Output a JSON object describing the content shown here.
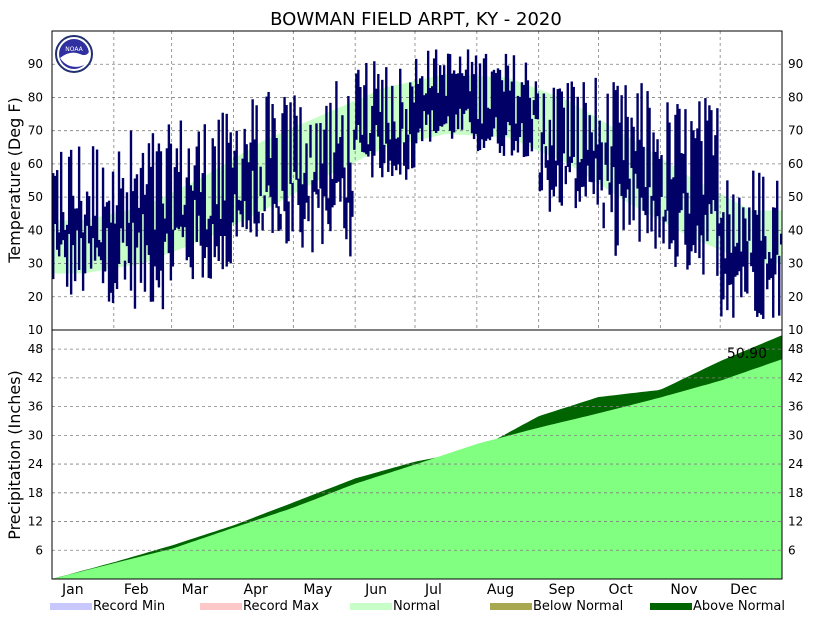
{
  "chart_data": {
    "type": "bar",
    "title": "BOWMAN FIELD ARPT, KY - 2020",
    "months": [
      "Jan",
      "Feb",
      "Mar",
      "Apr",
      "May",
      "Jun",
      "Jul",
      "Aug",
      "Sep",
      "Oct",
      "Nov",
      "Dec"
    ],
    "temperature": {
      "ylabel": "Temperature (Deg F)",
      "ylim": [
        10,
        100
      ],
      "yticks": [
        10,
        20,
        30,
        40,
        50,
        60,
        70,
        80,
        90
      ],
      "normal_high_monthly": [
        43,
        47,
        56,
        67,
        75,
        83,
        87,
        86,
        79,
        68,
        56,
        46
      ],
      "normal_low_monthly": [
        27,
        30,
        37,
        46,
        56,
        65,
        69,
        68,
        60,
        48,
        38,
        30
      ],
      "observed_monthly_high_range": [
        [
          33,
          70
        ],
        [
          30,
          72
        ],
        [
          40,
          76
        ],
        [
          44,
          82
        ],
        [
          48,
          86
        ],
        [
          65,
          93
        ],
        [
          80,
          95
        ],
        [
          72,
          94
        ],
        [
          55,
          88
        ],
        [
          48,
          85
        ],
        [
          42,
          81
        ],
        [
          28,
          60
        ]
      ],
      "observed_monthly_low_range": [
        [
          18,
          42
        ],
        [
          16,
          45
        ],
        [
          22,
          50
        ],
        [
          30,
          60
        ],
        [
          32,
          65
        ],
        [
          55,
          72
        ],
        [
          66,
          77
        ],
        [
          62,
          75
        ],
        [
          45,
          68
        ],
        [
          32,
          60
        ],
        [
          26,
          52
        ],
        [
          13,
          40
        ]
      ],
      "grid": true
    },
    "precipitation": {
      "ylabel": "Precipitation (Inches)",
      "ylim": [
        0,
        52
      ],
      "yticks": [
        6,
        12,
        18,
        24,
        30,
        36,
        42,
        48
      ],
      "normal_cumulative_month_end": [
        3.3,
        6.3,
        10.7,
        14.9,
        19.9,
        23.9,
        28.2,
        31.6,
        34.6,
        37.9,
        41.4,
        45.9
      ],
      "observed_cumulative_month_end": [
        3.5,
        7.0,
        11.2,
        16.0,
        21.0,
        24.5,
        27.0,
        34.0,
        38.0,
        39.5,
        45.5,
        50.9
      ],
      "final_total_label": "50.90",
      "grid": true
    },
    "legend": [
      "Record Min",
      "Record Max",
      "Normal",
      "Below Normal",
      "Above Normal"
    ],
    "legend_placement": "bottom",
    "colors": {
      "record_min": "#c8c8ff",
      "record_max": "#ffc8c8",
      "normal": "#c8ffc8",
      "below_normal": "#a8a850",
      "above_normal": "#006400",
      "normal_precip": "#80ff80",
      "observed_temp": "#000066",
      "grid": "#808080"
    }
  }
}
